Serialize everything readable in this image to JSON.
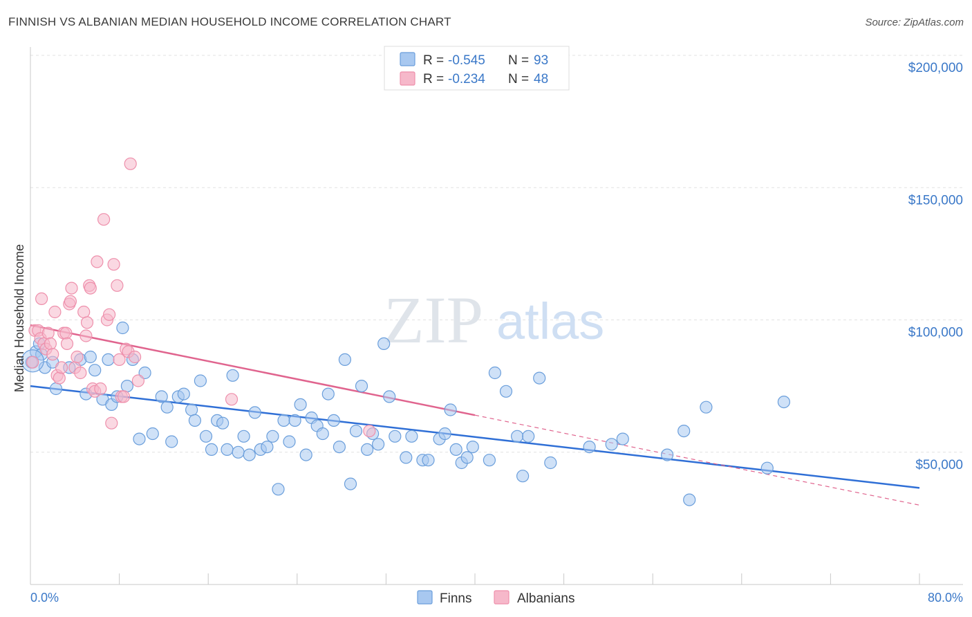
{
  "header": {
    "title": "FINNISH VS ALBANIAN MEDIAN HOUSEHOLD INCOME CORRELATION CHART",
    "source": "Source: ZipAtlas.com"
  },
  "watermark": {
    "zip": "ZIP",
    "atlas": "atlas"
  },
  "legend_top": {
    "rows": [
      {
        "r_label": "R =",
        "r_value": "-0.545",
        "n_label": "N =",
        "n_value": "93",
        "color": "#a8c8f0"
      },
      {
        "r_label": "R =",
        "r_value": "-0.234",
        "n_label": "N =",
        "n_value": "48",
        "color": "#f6b8ca"
      }
    ]
  },
  "legend_bottom": {
    "items": [
      "Finns",
      "Albanians"
    ]
  },
  "colors": {
    "finns_fill": "#a8c8f0",
    "finns_stroke": "#6a9edb",
    "finns_line": "#2f6fd6",
    "albanians_fill": "#f6b8ca",
    "albanians_stroke": "#ee8fab",
    "albanians_line": "#e0648e",
    "grid": "#e2e2e2",
    "tick_text": "#3a78c8"
  },
  "chart_data": {
    "type": "scatter",
    "title": "FINNISH VS ALBANIAN MEDIAN HOUSEHOLD INCOME CORRELATION CHART",
    "xlabel": "",
    "ylabel": "Median Household Income",
    "xlim": [
      0,
      80
    ],
    "ylim": [
      0,
      200000
    ],
    "x_tick_labels": [
      "0.0%",
      "80.0%"
    ],
    "y_ticks": [
      50000,
      100000,
      150000,
      200000
    ],
    "y_tick_labels": [
      "$50,000",
      "$100,000",
      "$150,000",
      "$200,000"
    ],
    "grid": true,
    "legend_position": "top-center",
    "series": [
      {
        "name": "Finns",
        "r": -0.545,
        "n": 93,
        "trend": {
          "x": [
            0,
            80
          ],
          "y": [
            75000,
            36500
          ]
        },
        "points": [
          [
            0.1,
            84000
          ],
          [
            0.5,
            88000
          ],
          [
            0.8,
            91000
          ],
          [
            1.0,
            87000
          ],
          [
            1.3,
            82000
          ],
          [
            2.0,
            84000
          ],
          [
            2.3,
            74000
          ],
          [
            3.5,
            82000
          ],
          [
            4.5,
            85000
          ],
          [
            5.0,
            72000
          ],
          [
            5.4,
            86000
          ],
          [
            5.8,
            81000
          ],
          [
            6.5,
            70000
          ],
          [
            7.0,
            85000
          ],
          [
            7.3,
            68000
          ],
          [
            7.8,
            71000
          ],
          [
            8.3,
            97000
          ],
          [
            8.7,
            75000
          ],
          [
            9.2,
            85000
          ],
          [
            9.8,
            55000
          ],
          [
            10.3,
            80000
          ],
          [
            11.0,
            57000
          ],
          [
            11.8,
            71000
          ],
          [
            12.3,
            67000
          ],
          [
            12.7,
            54000
          ],
          [
            13.3,
            71000
          ],
          [
            13.8,
            72000
          ],
          [
            14.5,
            66000
          ],
          [
            14.8,
            62000
          ],
          [
            15.3,
            77000
          ],
          [
            15.8,
            56000
          ],
          [
            16.3,
            51000
          ],
          [
            16.8,
            62000
          ],
          [
            17.3,
            61000
          ],
          [
            17.7,
            51000
          ],
          [
            18.2,
            79000
          ],
          [
            18.7,
            50000
          ],
          [
            19.2,
            56000
          ],
          [
            19.7,
            49000
          ],
          [
            20.2,
            65000
          ],
          [
            20.7,
            51000
          ],
          [
            21.3,
            52000
          ],
          [
            21.8,
            56000
          ],
          [
            22.3,
            36000
          ],
          [
            22.8,
            62000
          ],
          [
            23.3,
            54000
          ],
          [
            23.8,
            62000
          ],
          [
            24.3,
            68000
          ],
          [
            24.8,
            49000
          ],
          [
            25.3,
            63000
          ],
          [
            25.8,
            60000
          ],
          [
            26.3,
            57000
          ],
          [
            26.8,
            72000
          ],
          [
            27.3,
            62000
          ],
          [
            27.8,
            52000
          ],
          [
            28.3,
            85000
          ],
          [
            28.8,
            38000
          ],
          [
            29.3,
            58000
          ],
          [
            29.8,
            75000
          ],
          [
            30.3,
            51000
          ],
          [
            30.8,
            57000
          ],
          [
            31.3,
            53000
          ],
          [
            31.8,
            91000
          ],
          [
            32.3,
            71000
          ],
          [
            32.8,
            56000
          ],
          [
            33.8,
            48000
          ],
          [
            34.3,
            56000
          ],
          [
            35.3,
            47000
          ],
          [
            35.8,
            47000
          ],
          [
            36.8,
            55000
          ],
          [
            37.3,
            57000
          ],
          [
            37.8,
            66000
          ],
          [
            38.3,
            51000
          ],
          [
            38.8,
            46000
          ],
          [
            39.3,
            48000
          ],
          [
            39.8,
            52000
          ],
          [
            41.3,
            47000
          ],
          [
            41.8,
            80000
          ],
          [
            42.8,
            73000
          ],
          [
            43.8,
            56000
          ],
          [
            44.3,
            41000
          ],
          [
            44.8,
            56000
          ],
          [
            45.8,
            78000
          ],
          [
            46.8,
            46000
          ],
          [
            50.3,
            52000
          ],
          [
            52.3,
            53000
          ],
          [
            53.3,
            55000
          ],
          [
            57.3,
            49000
          ],
          [
            58.8,
            58000
          ],
          [
            59.3,
            32000
          ],
          [
            60.8,
            67000
          ],
          [
            66.3,
            44000
          ],
          [
            67.8,
            69000
          ]
        ]
      },
      {
        "name": "Albanians",
        "r": -0.234,
        "n": 48,
        "trend_solid": {
          "x": [
            0,
            40
          ],
          "y": [
            98000,
            64000
          ]
        },
        "trend_dashed": {
          "x": [
            40,
            80
          ],
          "y": [
            64000,
            30000
          ]
        },
        "points": [
          [
            0.2,
            84000
          ],
          [
            0.4,
            96000
          ],
          [
            0.7,
            96000
          ],
          [
            0.9,
            93000
          ],
          [
            1.0,
            108000
          ],
          [
            1.2,
            91000
          ],
          [
            1.4,
            89000
          ],
          [
            1.6,
            95000
          ],
          [
            1.8,
            91000
          ],
          [
            2.0,
            87000
          ],
          [
            2.2,
            103000
          ],
          [
            2.4,
            79000
          ],
          [
            2.6,
            78000
          ],
          [
            2.8,
            82000
          ],
          [
            3.0,
            95000
          ],
          [
            3.2,
            95000
          ],
          [
            3.3,
            91000
          ],
          [
            3.5,
            106000
          ],
          [
            3.6,
            107000
          ],
          [
            3.7,
            112000
          ],
          [
            4.0,
            82000
          ],
          [
            4.2,
            86000
          ],
          [
            4.5,
            80000
          ],
          [
            4.8,
            103000
          ],
          [
            5.0,
            94000
          ],
          [
            5.1,
            99000
          ],
          [
            5.3,
            113000
          ],
          [
            5.4,
            112000
          ],
          [
            5.6,
            74000
          ],
          [
            5.8,
            73000
          ],
          [
            6.0,
            122000
          ],
          [
            6.3,
            74000
          ],
          [
            6.6,
            138000
          ],
          [
            6.9,
            100000
          ],
          [
            7.1,
            102000
          ],
          [
            7.3,
            61000
          ],
          [
            7.5,
            121000
          ],
          [
            7.8,
            113000
          ],
          [
            8.0,
            85000
          ],
          [
            8.2,
            71000
          ],
          [
            8.4,
            71000
          ],
          [
            8.6,
            89000
          ],
          [
            8.8,
            88000
          ],
          [
            9.0,
            159000
          ],
          [
            9.4,
            86000
          ],
          [
            9.7,
            77000
          ],
          [
            18.1,
            70000
          ],
          [
            30.5,
            58000
          ]
        ]
      }
    ]
  }
}
